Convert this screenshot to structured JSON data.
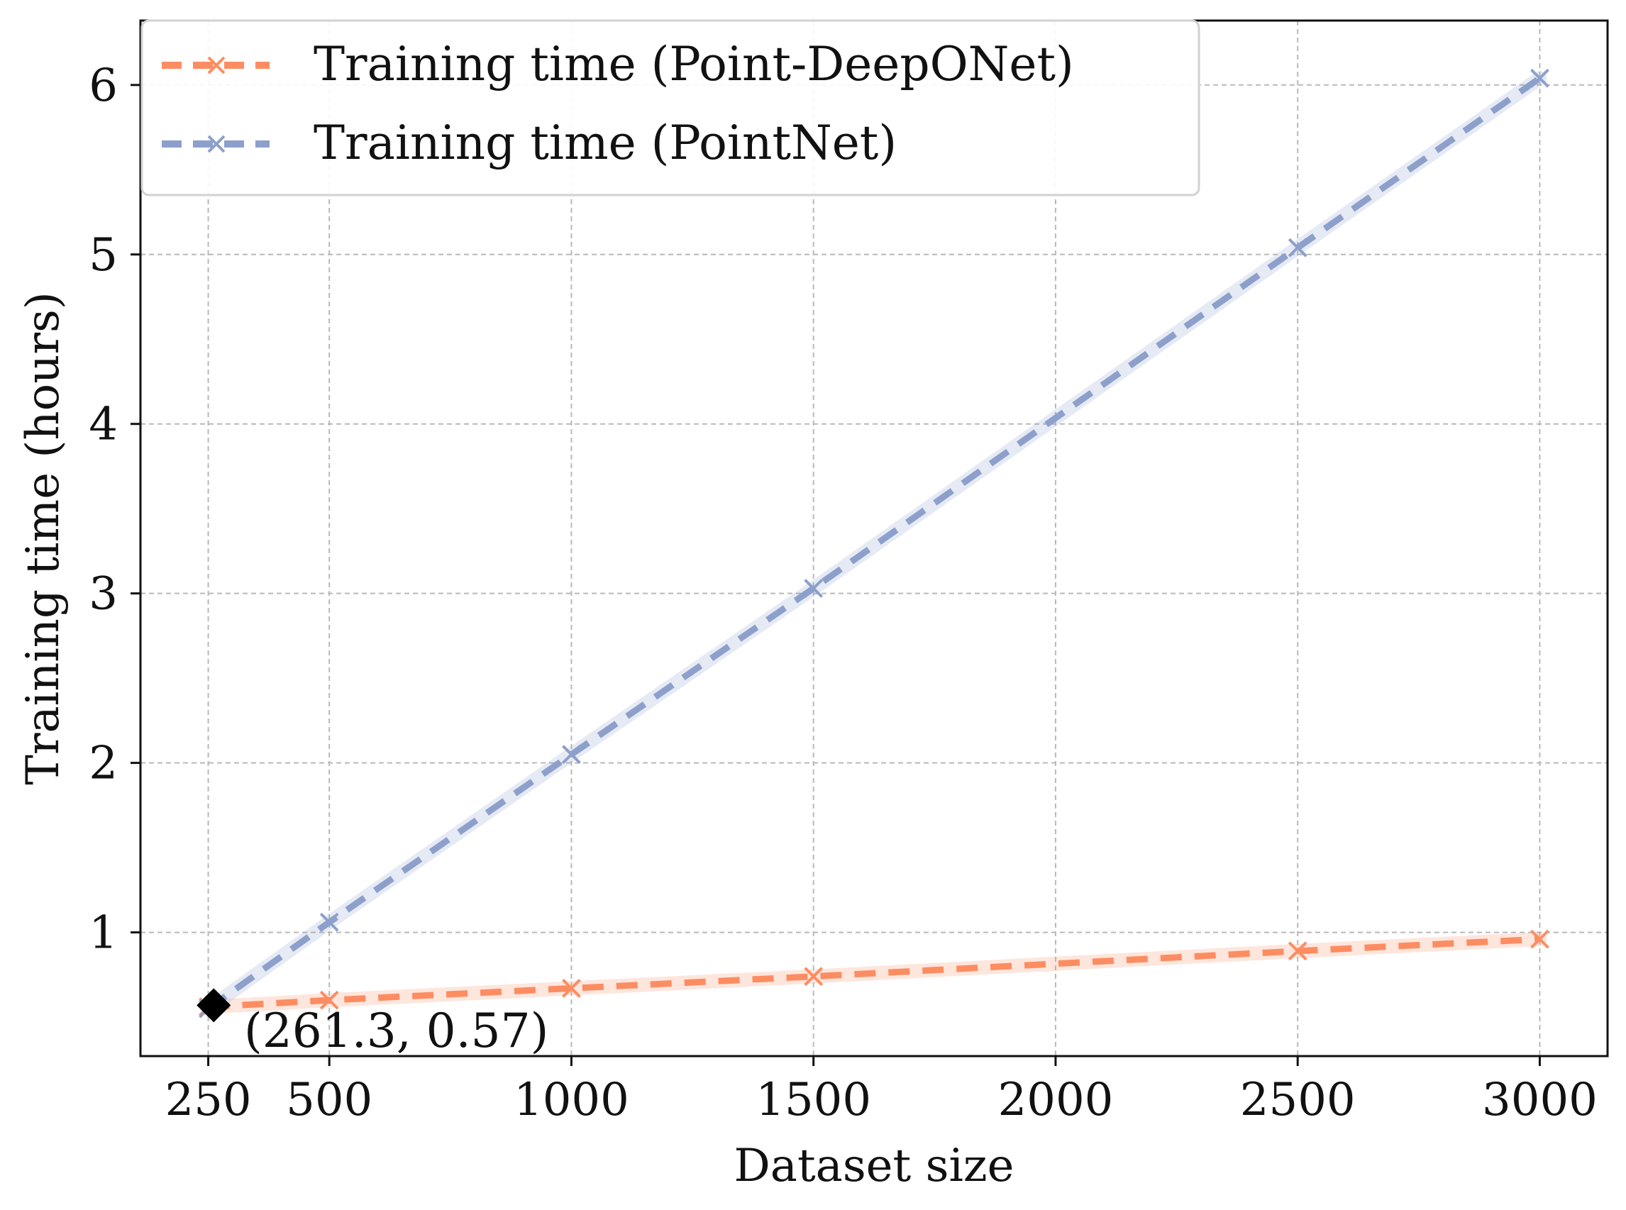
{
  "chart_data": {
    "type": "line",
    "title": "",
    "xlabel": "Dataset size",
    "ylabel": "Training time (hours)",
    "xlim": [
      110,
      3140
    ],
    "ylim": [
      0.27,
      6.38
    ],
    "x_ticks": [
      250,
      500,
      1000,
      1500,
      2000,
      2500,
      3000
    ],
    "x_tick_labels": [
      "250",
      "500",
      "1000",
      "1500",
      "2000",
      "2500",
      "3000"
    ],
    "y_ticks": [
      1,
      2,
      3,
      4,
      5,
      6
    ],
    "y_tick_labels": [
      "1",
      "2",
      "3",
      "4",
      "5",
      "6"
    ],
    "grid": true,
    "legend_position": "top-left",
    "series": [
      {
        "name": "Training time (Point-DeepONet)",
        "color": "#fc8d62",
        "x": [
          250,
          500,
          1000,
          1500,
          2500,
          3000
        ],
        "y": [
          0.56,
          0.6,
          0.67,
          0.74,
          0.89,
          0.96
        ]
      },
      {
        "name": "Training time (PointNet)",
        "color": "#8da0cb",
        "x": [
          250,
          500,
          1000,
          1500,
          2500,
          3000
        ],
        "y": [
          0.55,
          1.06,
          2.05,
          3.03,
          5.04,
          6.04
        ]
      }
    ],
    "annotation": {
      "x": 261.3,
      "y": 0.57,
      "label": "(261.3, 0.57)",
      "marker_color": "#000000"
    }
  }
}
